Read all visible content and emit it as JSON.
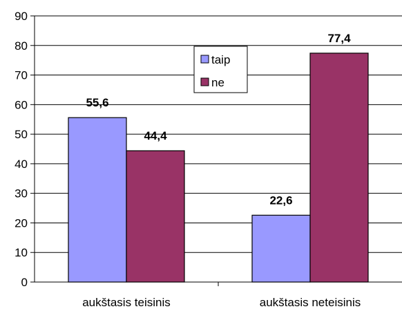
{
  "chart_data": {
    "type": "bar",
    "categories": [
      "aukštasis teisinis",
      "aukštasis neteisinis"
    ],
    "series": [
      {
        "name": "taip",
        "values": [
          55.6,
          22.6
        ],
        "labels": [
          "55,6",
          "22,6"
        ],
        "color": "#9999FF"
      },
      {
        "name": "ne",
        "values": [
          44.4,
          77.4
        ],
        "labels": [
          "44,4",
          "77,4"
        ],
        "color": "#993366"
      }
    ],
    "ylim": [
      0,
      90
    ],
    "yticks": [
      0,
      10,
      20,
      30,
      40,
      50,
      60,
      70,
      80,
      90
    ],
    "grid": true,
    "legend_position": "top-center"
  }
}
